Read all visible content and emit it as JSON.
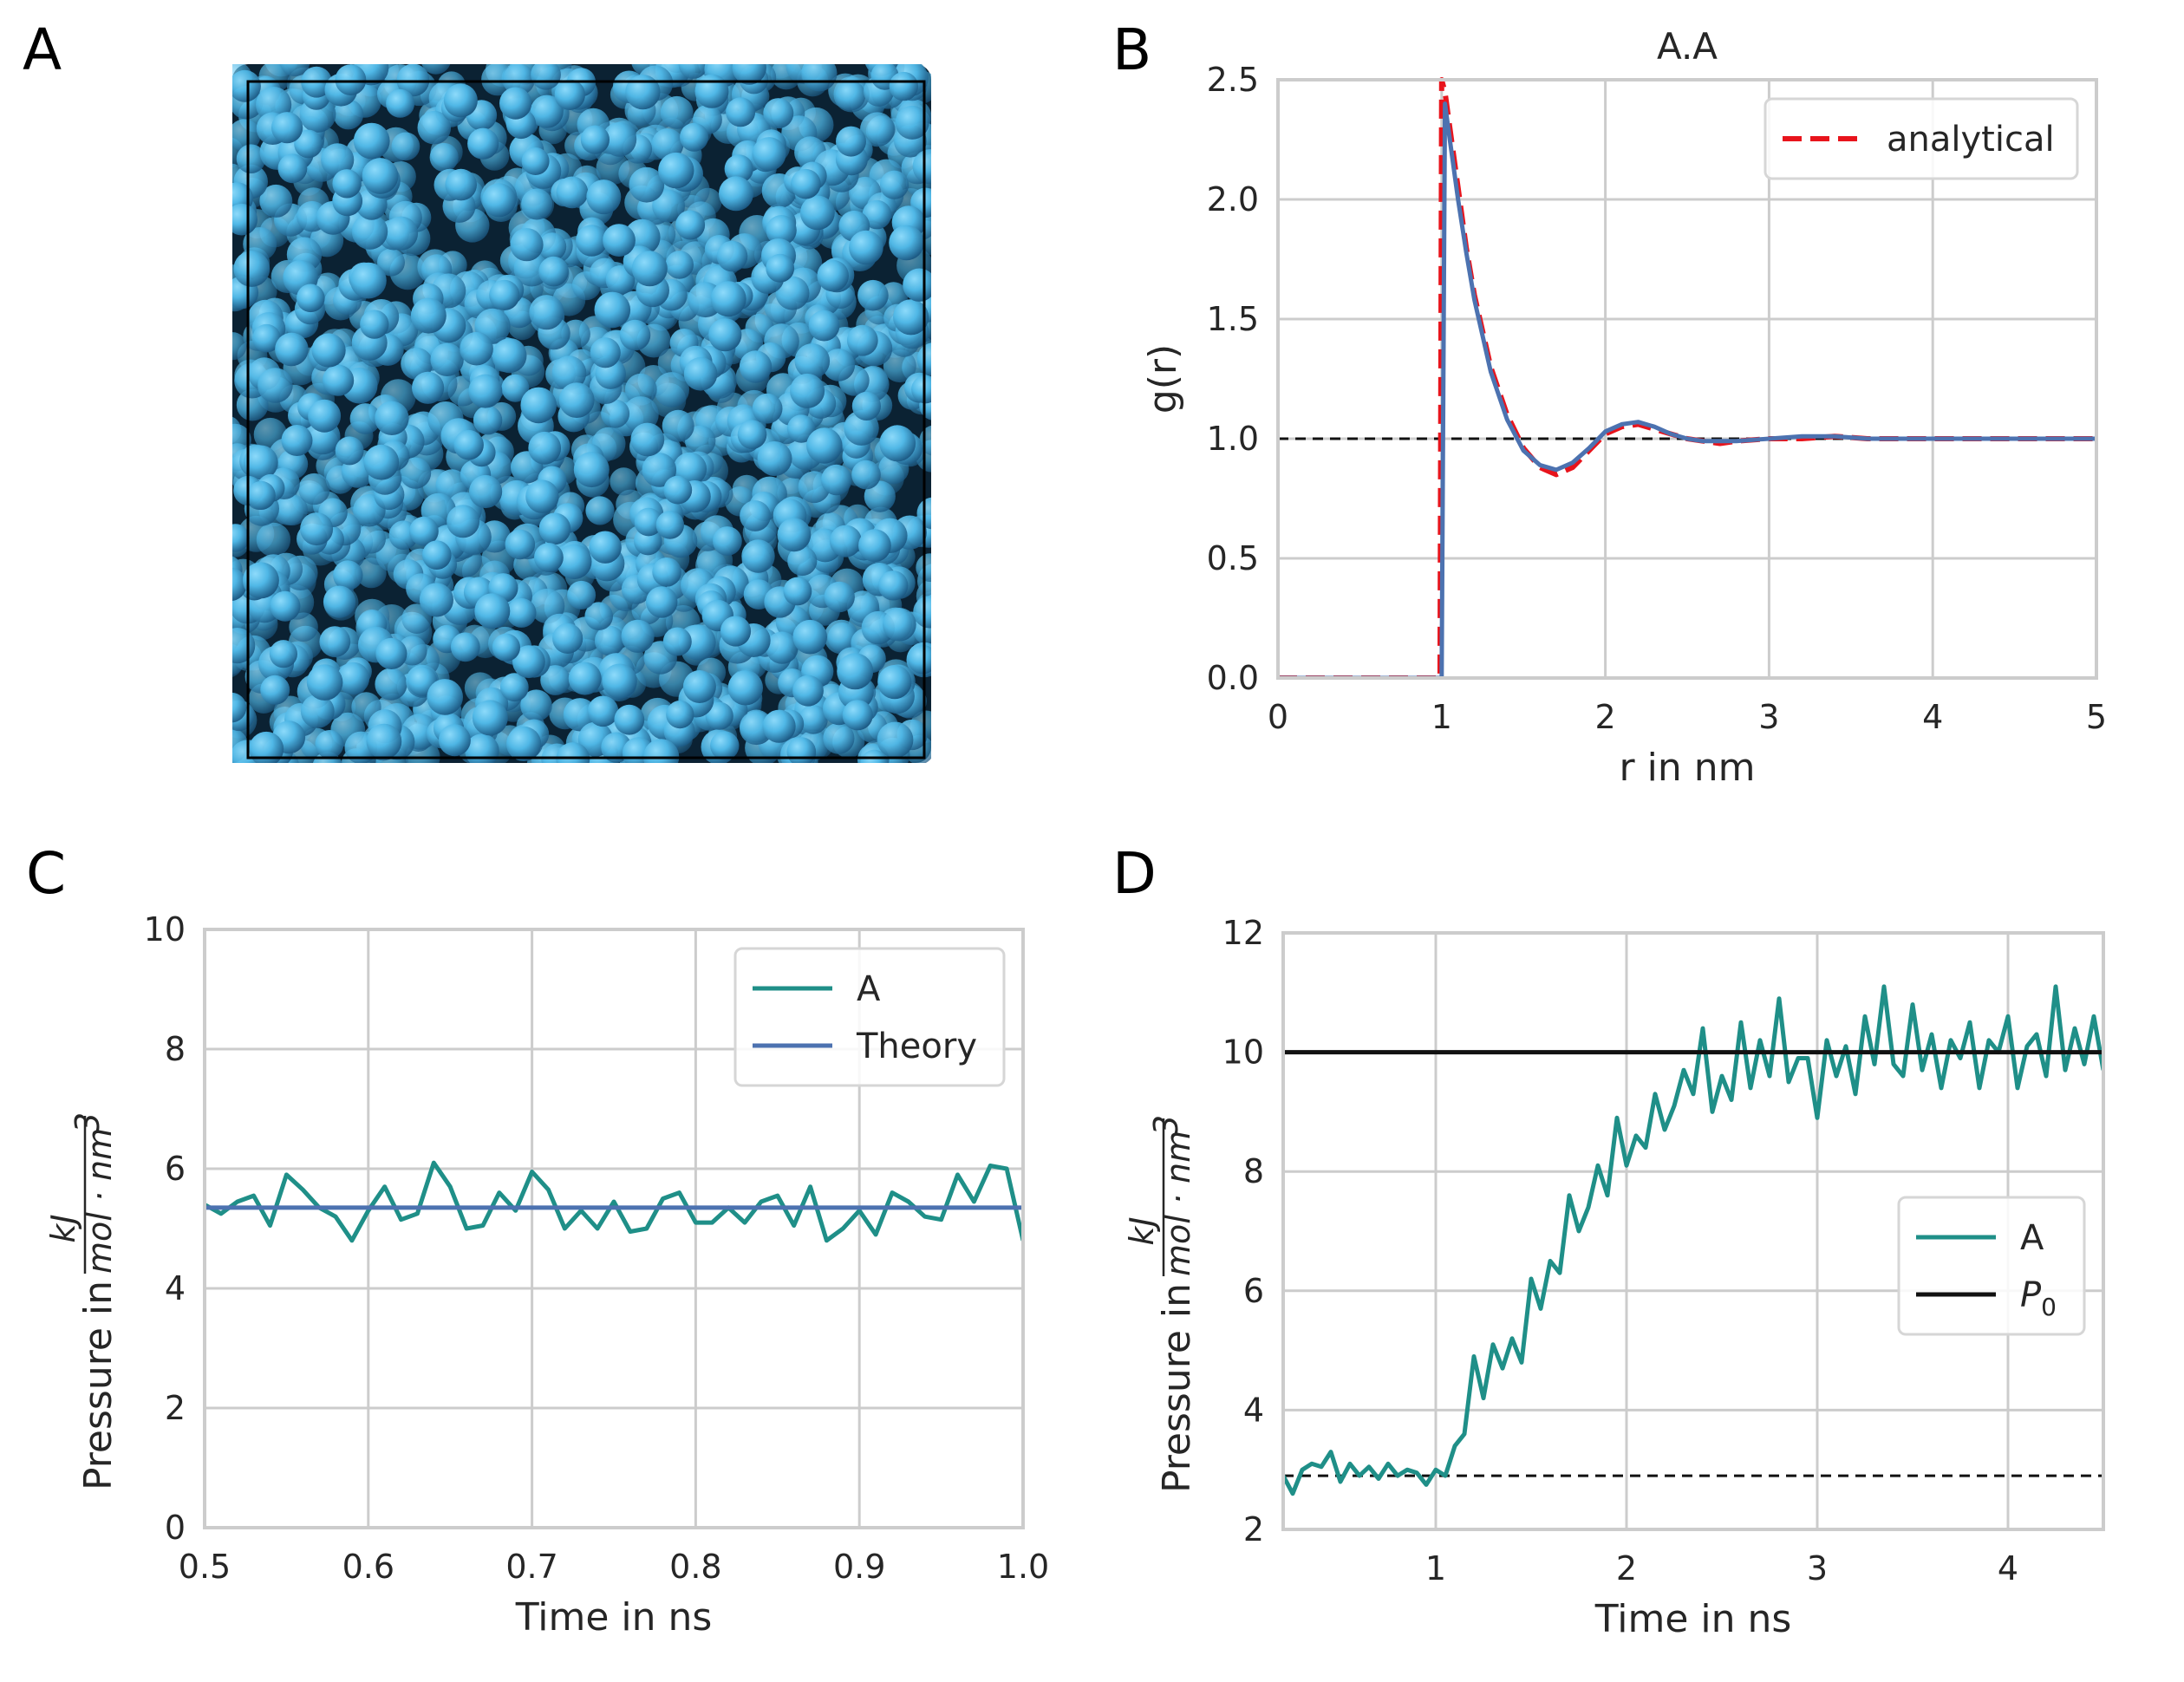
{
  "panels": {
    "a": {
      "letter": "A"
    },
    "b": {
      "letter": "B"
    },
    "c": {
      "letter": "C"
    },
    "d": {
      "letter": "D"
    }
  },
  "colors": {
    "teal": "#1f8f88",
    "blue": "#4c72b0",
    "red": "#e8141c",
    "black": "#111111",
    "grid": "#cccccc",
    "sphere_light": "#5fc6f2",
    "sphere_dark": "#1b4f72"
  },
  "chart_data": [
    {
      "id": "rdf",
      "type": "line",
      "title": "A.A",
      "xlabel": "r in nm",
      "ylabel": "g(r)",
      "xlim": [
        0,
        5
      ],
      "ylim": [
        0,
        2.5
      ],
      "xticks": [
        0,
        1,
        2,
        3,
        4,
        5
      ],
      "yticks": [
        0.0,
        0.5,
        1.0,
        1.5,
        2.0,
        2.5
      ],
      "ytick_labels": [
        "0.0",
        "0.5",
        "1.0",
        "1.5",
        "2.0",
        "2.5"
      ],
      "legend_position": "upper right",
      "reference_line_y": 1.0,
      "series": [
        {
          "name": "analytical",
          "style": "dashed",
          "color": "#e8141c",
          "x": [
            0,
            0.98,
            0.99,
            1.0,
            1.02,
            1.05,
            1.1,
            1.15,
            1.2,
            1.3,
            1.4,
            1.5,
            1.6,
            1.7,
            1.8,
            1.9,
            2.0,
            2.1,
            2.2,
            2.3,
            2.4,
            2.5,
            2.6,
            2.7,
            2.8,
            3.0,
            3.2,
            3.4,
            3.6,
            3.8,
            4.0,
            4.5,
            5.0
          ],
          "y": [
            0,
            0,
            0.0,
            2.5,
            2.45,
            2.3,
            2.05,
            1.8,
            1.6,
            1.3,
            1.1,
            0.96,
            0.88,
            0.85,
            0.88,
            0.95,
            1.02,
            1.05,
            1.06,
            1.04,
            1.02,
            1.0,
            0.99,
            0.98,
            0.99,
            1.0,
            1.0,
            1.01,
            1.0,
            1.0,
            1.0,
            1.0,
            1.0
          ]
        },
        {
          "x": [
            0,
            0.98,
            1.0,
            1.01,
            1.02,
            1.05,
            1.1,
            1.15,
            1.2,
            1.3,
            1.4,
            1.5,
            1.6,
            1.7,
            1.8,
            1.9,
            2.0,
            2.1,
            2.2,
            2.3,
            2.4,
            2.5,
            2.6,
            2.7,
            2.8,
            3.0,
            3.2,
            3.4,
            3.6,
            3.8,
            4.0,
            4.5,
            5.0
          ],
          "y": [
            0,
            0,
            0,
            1.2,
            2.4,
            2.25,
            2.0,
            1.78,
            1.58,
            1.28,
            1.08,
            0.95,
            0.89,
            0.87,
            0.9,
            0.96,
            1.03,
            1.06,
            1.07,
            1.05,
            1.02,
            1.0,
            0.99,
            0.99,
            0.99,
            1.0,
            1.01,
            1.01,
            1.0,
            1.0,
            1.0,
            1.0,
            1.0
          ],
          "color": "#4c72b0",
          "style": "solid"
        }
      ]
    },
    {
      "id": "pressure_equil",
      "type": "line",
      "xlabel": "Time in ns",
      "ylabel_prefix": "Pressure in",
      "ylabel_frac_num": "kJ",
      "ylabel_frac_den": "mol · nm",
      "ylabel_frac_exp": "3",
      "xlim": [
        0.5,
        1.0
      ],
      "ylim": [
        0,
        10
      ],
      "xticks": [
        0.5,
        0.6,
        0.7,
        0.8,
        0.9,
        1.0
      ],
      "xtick_labels": [
        "0.5",
        "0.6",
        "0.7",
        "0.8",
        "0.9",
        "1.0"
      ],
      "yticks": [
        0,
        2,
        4,
        6,
        8,
        10
      ],
      "legend_position": "upper right",
      "series": [
        {
          "name": "A",
          "color": "#1f8f88",
          "x": [
            0.5,
            0.51,
            0.52,
            0.53,
            0.54,
            0.55,
            0.56,
            0.57,
            0.58,
            0.59,
            0.6,
            0.61,
            0.62,
            0.63,
            0.64,
            0.65,
            0.66,
            0.67,
            0.68,
            0.69,
            0.7,
            0.71,
            0.72,
            0.73,
            0.74,
            0.75,
            0.76,
            0.77,
            0.78,
            0.79,
            0.8,
            0.81,
            0.82,
            0.83,
            0.84,
            0.85,
            0.86,
            0.87,
            0.88,
            0.89,
            0.9,
            0.91,
            0.92,
            0.93,
            0.94,
            0.95,
            0.96,
            0.97,
            0.98,
            0.99,
            1.0
          ],
          "y": [
            5.4,
            5.25,
            5.45,
            5.55,
            5.05,
            5.9,
            5.65,
            5.35,
            5.2,
            4.8,
            5.3,
            5.7,
            5.15,
            5.25,
            6.1,
            5.7,
            5.0,
            5.05,
            5.6,
            5.3,
            5.95,
            5.65,
            5.0,
            5.3,
            5.0,
            5.45,
            4.95,
            5.0,
            5.5,
            5.6,
            5.1,
            5.1,
            5.35,
            5.1,
            5.45,
            5.55,
            5.05,
            5.7,
            4.8,
            5.0,
            5.3,
            4.9,
            5.6,
            5.45,
            5.2,
            5.15,
            5.9,
            5.45,
            6.05,
            6.0,
            4.8
          ]
        },
        {
          "name": "Theory",
          "color": "#4c72b0",
          "x": [
            0.5,
            1.0
          ],
          "y": [
            5.35,
            5.35
          ]
        }
      ]
    },
    {
      "id": "pressure_ramp",
      "type": "line",
      "xlabel": "Time in ns",
      "ylabel_prefix": "Pressure in",
      "ylabel_frac_num": "kJ",
      "ylabel_frac_den": "mol · nm",
      "ylabel_frac_exp": "3",
      "xlim": [
        0.2,
        4.5
      ],
      "ylim": [
        2,
        12
      ],
      "xticks": [
        1,
        2,
        3,
        4
      ],
      "yticks": [
        2,
        4,
        6,
        8,
        10,
        12
      ],
      "legend_position": "center right",
      "reference_line_y": 2.9,
      "series": [
        {
          "name": "A",
          "color": "#1f8f88",
          "x": [
            0.2,
            0.25,
            0.3,
            0.35,
            0.4,
            0.45,
            0.5,
            0.55,
            0.6,
            0.65,
            0.7,
            0.75,
            0.8,
            0.85,
            0.9,
            0.95,
            1.0,
            1.05,
            1.1,
            1.15,
            1.2,
            1.25,
            1.3,
            1.35,
            1.4,
            1.45,
            1.5,
            1.55,
            1.6,
            1.65,
            1.7,
            1.75,
            1.8,
            1.85,
            1.9,
            1.95,
            2.0,
            2.05,
            2.1,
            2.15,
            2.2,
            2.25,
            2.3,
            2.35,
            2.4,
            2.45,
            2.5,
            2.55,
            2.6,
            2.65,
            2.7,
            2.75,
            2.8,
            2.85,
            2.9,
            2.95,
            3.0,
            3.05,
            3.1,
            3.15,
            3.2,
            3.25,
            3.3,
            3.35,
            3.4,
            3.45,
            3.5,
            3.55,
            3.6,
            3.65,
            3.7,
            3.75,
            3.8,
            3.85,
            3.9,
            3.95,
            4.0,
            4.05,
            4.1,
            4.15,
            4.2,
            4.25,
            4.3,
            4.35,
            4.4,
            4.45,
            4.5
          ],
          "y": [
            2.9,
            2.6,
            3.0,
            3.1,
            3.05,
            3.3,
            2.8,
            3.1,
            2.9,
            3.05,
            2.85,
            3.1,
            2.9,
            3.0,
            2.95,
            2.75,
            3.0,
            2.9,
            3.4,
            3.6,
            4.9,
            4.2,
            5.1,
            4.7,
            5.2,
            4.8,
            6.2,
            5.7,
            6.5,
            6.3,
            7.6,
            7.0,
            7.4,
            8.1,
            7.6,
            8.9,
            8.1,
            8.6,
            8.4,
            9.3,
            8.7,
            9.1,
            9.7,
            9.3,
            10.4,
            9.0,
            9.6,
            9.2,
            10.5,
            9.4,
            10.2,
            9.6,
            10.9,
            9.5,
            9.9,
            9.9,
            8.9,
            10.2,
            9.6,
            10.1,
            9.3,
            10.6,
            9.8,
            11.1,
            9.8,
            9.6,
            10.8,
            9.7,
            10.3,
            9.4,
            10.2,
            9.9,
            10.5,
            9.4,
            10.2,
            10.0,
            10.6,
            9.4,
            10.1,
            10.3,
            9.6,
            11.1,
            9.7,
            10.4,
            9.8,
            10.6,
            9.7
          ]
        },
        {
          "name": "P",
          "name_subscript": "0",
          "color": "#111111",
          "x": [
            0.2,
            4.5
          ],
          "y": [
            10,
            10
          ]
        }
      ]
    }
  ]
}
